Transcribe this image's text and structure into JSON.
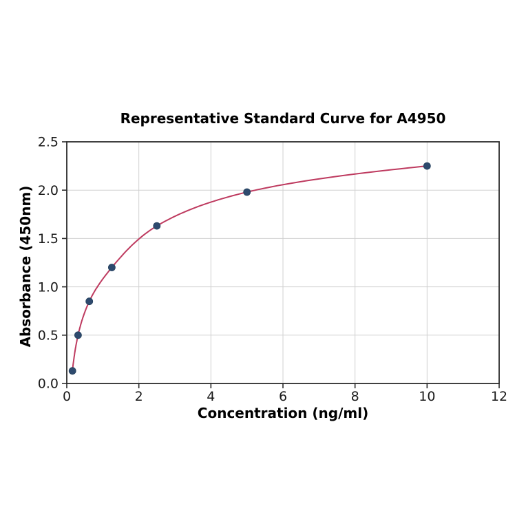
{
  "chart_data": {
    "type": "scatter",
    "title": "Representative Standard Curve for A4950",
    "xlabel": "Concentration (ng/ml)",
    "ylabel": "Absorbance (450nm)",
    "x": [
      0.156,
      0.3125,
      0.625,
      1.25,
      2.5,
      5,
      10
    ],
    "y": [
      0.13,
      0.5,
      0.85,
      1.2,
      1.63,
      1.98,
      2.25
    ],
    "fit_curve": "smooth saturating (4PL-style) curve drawn through all data points from x=0.156 to x=10",
    "xlim": [
      0,
      12
    ],
    "ylim": [
      0,
      2.5
    ],
    "xticks": [
      0,
      2,
      4,
      6,
      8,
      10,
      12
    ],
    "xtick_labels": [
      "0",
      "2",
      "4",
      "6",
      "8",
      "10",
      "12"
    ],
    "yticks": [
      0,
      0.5,
      1,
      1.5,
      2,
      2.5
    ],
    "ytick_labels": [
      "0.0",
      "0.5",
      "1.0",
      "1.5",
      "2.0",
      "2.5"
    ],
    "grid": true,
    "legend": "none",
    "colors": {
      "curve": "#be3a5f",
      "marker": "#2e4a6e",
      "marker_edge": "#24405c",
      "grid": "#d0d0d0",
      "spine": "#2b2b2b",
      "text": "#000000",
      "tick_text": "#1a1a1a",
      "background": "#ffffff"
    }
  }
}
